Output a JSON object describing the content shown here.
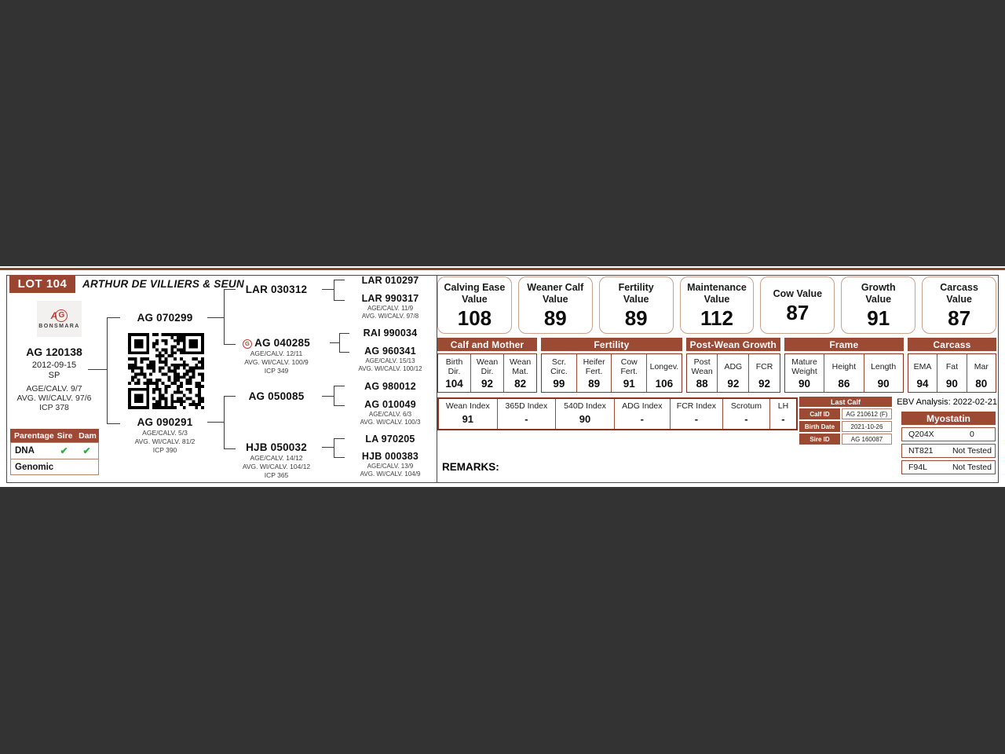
{
  "page": {
    "remarks_label": "REMARKS:"
  },
  "colors": {
    "accent": "#9c4a33",
    "badge": "#9a4531",
    "value_border": "#c9a18f",
    "check_green": "#2eb140",
    "logo_red": "#c6372f"
  },
  "header": {
    "lot": "LOT 104",
    "owner": "ARTHUR DE VILLIERS & SEUN"
  },
  "logo": {
    "monogram_a": "A",
    "monogram_g": "G",
    "brand": "BONSMARA"
  },
  "animal": {
    "id": "AG 120138",
    "birth_date": "2012-09-15",
    "status": "SP",
    "details": [
      "AGE/CALV. 9/7",
      "AVG. WI/CALV. 97/6",
      "ICP 378"
    ]
  },
  "parentage": {
    "title": "Parentage",
    "col_sire": "Sire",
    "col_dam": "Dam",
    "rows": [
      {
        "label": "DNA",
        "sire": "✔",
        "dam": "✔"
      },
      {
        "label": "Genomic",
        "sire": "",
        "dam": ""
      }
    ]
  },
  "pedigree": {
    "gen2": [
      {
        "name": "AG 070299"
      },
      {
        "name": "AG 090291",
        "details": [
          "AGE/CALV. 5/3",
          "AVG. WI/CALV. 81/2",
          "ICP 390"
        ]
      }
    ],
    "gen3": [
      {
        "name": "LAR 030312"
      },
      {
        "name": "AG 040285",
        "details": [
          "AGE/CALV. 12/11",
          "AVG. WI/CALV. 100/9",
          "ICP 349"
        ]
      },
      {
        "name": "AG 050085"
      },
      {
        "name": "HJB 050032",
        "details": [
          "AGE/CALV. 14/12",
          "AVG. WI/CALV. 104/12",
          "ICP 365"
        ]
      }
    ],
    "gen4": [
      {
        "name": "LAR 010297"
      },
      {
        "name": "LAR 990317",
        "details": [
          "AGE/CALV. 11/9",
          "AVG. WI/CALV. 97/8"
        ]
      },
      {
        "name": "RAI 990034"
      },
      {
        "name": "AG 960341",
        "details": [
          "AGE/CALV. 15/13",
          "AVG. WI/CALV. 100/12"
        ]
      },
      {
        "name": "AG 980012"
      },
      {
        "name": "AG 010049",
        "details": [
          "AGE/CALV. 6/3",
          "AVG. WI/CALV. 100/3"
        ]
      },
      {
        "name": "LA 970205"
      },
      {
        "name": "HJB 000383",
        "details": [
          "AGE/CALV. 13/9",
          "AVG. WI/CALV. 104/9"
        ]
      }
    ]
  },
  "value_boxes": [
    {
      "line1": "Calving Ease",
      "line2": "Value",
      "value": "108"
    },
    {
      "line1": "Weaner Calf",
      "line2": "Value",
      "value": "89"
    },
    {
      "line1": "Fertility",
      "line2": "Value",
      "value": "89"
    },
    {
      "line1": "Maintenance",
      "line2": "Value",
      "value": "112"
    },
    {
      "line1": "Cow Value",
      "line2": "",
      "value": "87"
    },
    {
      "line1": "Growth",
      "line2": "Value",
      "value": "91"
    },
    {
      "line1": "Carcass",
      "line2": "Value",
      "value": "87"
    }
  ],
  "ebv": {
    "groups": [
      {
        "title": "Calf and Mother",
        "cols": [
          {
            "l1": "Birth",
            "l2": "Dir.",
            "value": "104"
          },
          {
            "l1": "Wean",
            "l2": "Dir.",
            "value": "92"
          },
          {
            "l1": "Wean",
            "l2": "Mat.",
            "value": "82"
          }
        ]
      },
      {
        "title": "Fertility",
        "cols": [
          {
            "l1": "Scr.",
            "l2": "Circ.",
            "value": "99"
          },
          {
            "l1": "Heifer",
            "l2": "Fert.",
            "value": "89"
          },
          {
            "l1": "Cow",
            "l2": "Fert.",
            "value": "91"
          },
          {
            "l1": "Longev.",
            "l2": "",
            "value": "106"
          }
        ]
      },
      {
        "title": "Post-Wean Growth",
        "cols": [
          {
            "l1": "Post",
            "l2": "Wean",
            "value": "88"
          },
          {
            "l1": "ADG",
            "l2": "",
            "value": "92"
          },
          {
            "l1": "FCR",
            "l2": "",
            "value": "92"
          }
        ]
      },
      {
        "title": "Frame",
        "cols": [
          {
            "l1": "Mature",
            "l2": "Weight",
            "value": "90"
          },
          {
            "l1": "Height",
            "l2": "",
            "value": "86"
          },
          {
            "l1": "Length",
            "l2": "",
            "value": "90"
          }
        ]
      },
      {
        "title": "Carcass",
        "cols": [
          {
            "l1": "EMA",
            "l2": "",
            "value": "94"
          },
          {
            "l1": "Fat",
            "l2": "",
            "value": "90"
          },
          {
            "l1": "Mar",
            "l2": "",
            "value": "80"
          }
        ]
      }
    ],
    "index_row": [
      {
        "label": "Wean Index",
        "value": "91"
      },
      {
        "label": "365D Index",
        "value": "-"
      },
      {
        "label": "540D Index",
        "value": "90"
      },
      {
        "label": "ADG Index",
        "value": "-"
      },
      {
        "label": "FCR Index",
        "value": "-"
      },
      {
        "label": "Scrotum",
        "value": "-"
      },
      {
        "label": "LH",
        "value": "-"
      }
    ],
    "analysis": "EBV Analysis: 2022-02-21"
  },
  "last_calf": {
    "title": "Last Calf",
    "rows": [
      {
        "label": "Calf ID",
        "value": "AG 210612 (F)"
      },
      {
        "label": "Birth Date",
        "value": "2021-10-26"
      },
      {
        "label": "Sire ID",
        "value": "AG 160087"
      }
    ]
  },
  "myostatin": {
    "title": "Myostatin",
    "rows": [
      {
        "label": "Q204X",
        "value": "0"
      },
      {
        "label": "NT821",
        "value": "Not Tested"
      },
      {
        "label": "F94L",
        "value": "Not Tested"
      }
    ]
  }
}
